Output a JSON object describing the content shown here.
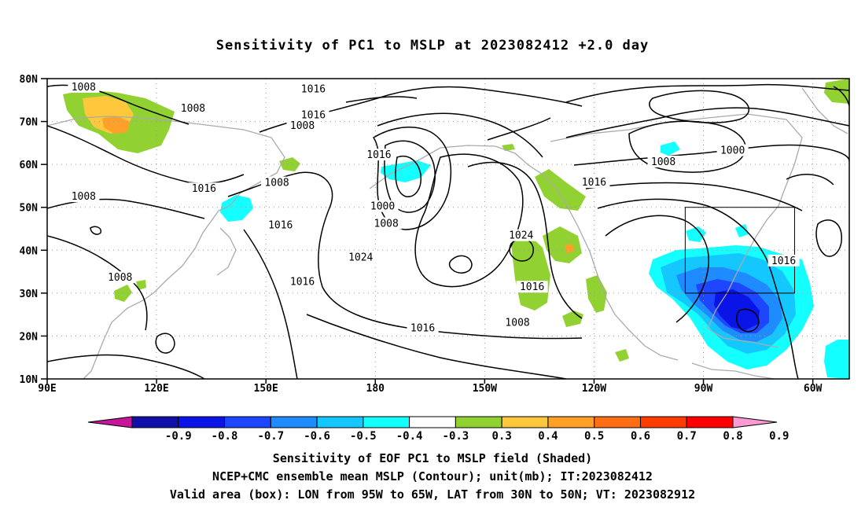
{
  "title": "Sensitivity of PC1 to MSLP at 2023082412 +2.0 day",
  "map": {
    "lat_labels": [
      "80N",
      "70N",
      "60N",
      "50N",
      "40N",
      "30N",
      "20N",
      "10N"
    ],
    "lon_labels": [
      "90E",
      "120E",
      "150E",
      "180",
      "150W",
      "120W",
      "90W",
      "60W"
    ],
    "lon_range": [
      90,
      310
    ],
    "lat_range": [
      10,
      80
    ],
    "box": {
      "lon": [
        265,
        295
      ],
      "lat": [
        30,
        50
      ]
    },
    "contour_labels": [
      {
        "text": "1008",
        "lon": 100,
        "lat": 78
      },
      {
        "text": "1008",
        "lon": 130,
        "lat": 73
      },
      {
        "text": "1016",
        "lon": 163,
        "lat": 77.5
      },
      {
        "text": "1016",
        "lon": 163,
        "lat": 71.5
      },
      {
        "text": "1008",
        "lon": 160,
        "lat": 69
      },
      {
        "text": "1016",
        "lon": 181,
        "lat": 62.2
      },
      {
        "text": "1008",
        "lon": 100,
        "lat": 52.5
      },
      {
        "text": "1016",
        "lon": 133,
        "lat": 54.3
      },
      {
        "text": "1008",
        "lon": 153,
        "lat": 55.7
      },
      {
        "text": "1000",
        "lon": 182,
        "lat": 50.2
      },
      {
        "text": "1008",
        "lon": 183,
        "lat": 46.2
      },
      {
        "text": "1016",
        "lon": 154,
        "lat": 45.8
      },
      {
        "text": "1024",
        "lon": 176,
        "lat": 38.3
      },
      {
        "text": "1016",
        "lon": 160,
        "lat": 32.6
      },
      {
        "text": "1016",
        "lon": 193,
        "lat": 21.8
      },
      {
        "text": "1008",
        "lon": 110,
        "lat": 33.6
      },
      {
        "text": "1024",
        "lon": 220,
        "lat": 43.4
      },
      {
        "text": "1016",
        "lon": 223,
        "lat": 31.4
      },
      {
        "text": "1008",
        "lon": 219,
        "lat": 23.1
      },
      {
        "text": "1016",
        "lon": 240,
        "lat": 55.8
      },
      {
        "text": "1008",
        "lon": 259,
        "lat": 60.6
      },
      {
        "text": "1000",
        "lon": 278,
        "lat": 63.2
      },
      {
        "text": "1016",
        "lon": 292,
        "lat": 37.5
      }
    ]
  },
  "colorbar": {
    "labels": [
      "-0.9",
      "-0.8",
      "-0.7",
      "-0.6",
      "-0.5",
      "-0.4",
      "-0.3",
      "0.3",
      "0.4",
      "0.5",
      "0.6",
      "0.7",
      "0.8",
      "0.9"
    ],
    "colors": [
      "#c8169b",
      "#1010a8",
      "#0a14e6",
      "#1e46ff",
      "#1e8cff",
      "#14c8ff",
      "#14ffff",
      "#ffffff",
      "#91d232",
      "#ffc83c",
      "#ffa028",
      "#ff6e14",
      "#ff3c00",
      "#ff0000",
      "#ff9bd2"
    ]
  },
  "captions": {
    "line1": "Sensitivity of EOF PC1 to MSLP field (Shaded)",
    "line2": "NCEP+CMC ensemble mean MSLP (Contour); unit(mb); IT:2023082412",
    "line3": "Valid area (box): LON from 95W to 65W, LAT from 30N to 50N; VT: 2023082912"
  }
}
